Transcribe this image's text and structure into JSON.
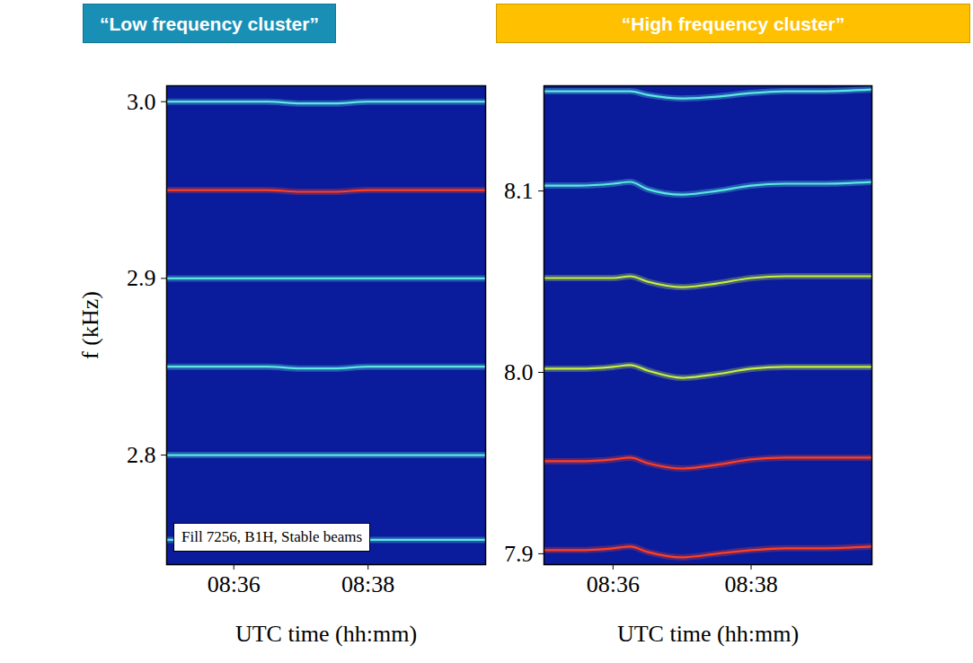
{
  "chart_data": [
    {
      "type": "line",
      "title": "“Low frequency cluster”",
      "xlabel": "UTC time (hh:mm)",
      "ylabel": "f (kHz)",
      "annotation": "Fill 7256, B1H, Stable beams",
      "x": [
        "08:35:00",
        "08:35:30",
        "08:36:00",
        "08:36:30",
        "08:37:00",
        "08:37:30",
        "08:38:00",
        "08:38:30",
        "08:39:00",
        "08:39:45"
      ],
      "series": [
        {
          "color": "#5ce8e0",
          "values": [
            3.0,
            3.0,
            3.0,
            3.0,
            2.999,
            2.999,
            3.0,
            3.0,
            3.0,
            3.0
          ]
        },
        {
          "color": "#ff4020",
          "values": [
            2.95,
            2.95,
            2.95,
            2.95,
            2.949,
            2.949,
            2.95,
            2.95,
            2.95,
            2.95
          ]
        },
        {
          "color": "#5ce8e0",
          "values": [
            2.9,
            2.9,
            2.9,
            2.9,
            2.9,
            2.9,
            2.9,
            2.9,
            2.9,
            2.9
          ]
        },
        {
          "color": "#5ce8e0",
          "values": [
            2.85,
            2.85,
            2.85,
            2.85,
            2.849,
            2.849,
            2.85,
            2.85,
            2.85,
            2.85
          ]
        },
        {
          "color": "#5ce8e0",
          "values": [
            2.8,
            2.8,
            2.8,
            2.8,
            2.8,
            2.8,
            2.8,
            2.8,
            2.8,
            2.8
          ]
        },
        {
          "color": "#5ce8e0",
          "values": [
            2.752,
            2.752,
            2.752,
            2.752,
            2.752,
            2.752,
            2.752,
            2.752,
            2.752,
            2.752
          ]
        }
      ],
      "xlim": [
        "08:35:00",
        "08:39:45"
      ],
      "xticks": [
        "08:36",
        "08:38"
      ],
      "ylim": [
        2.738,
        3.009
      ],
      "yticks": [
        2.8,
        2.9,
        {
          "value": 3,
          "label": "3.0"
        }
      ],
      "color": "#1a8fb5"
    },
    {
      "type": "line",
      "title": "“High frequency cluster”",
      "xlabel": "UTC time (hh:mm)",
      "x": [
        "08:35:00",
        "08:35:30",
        "08:36:00",
        "08:36:15",
        "08:36:30",
        "08:37:00",
        "08:37:30",
        "08:38:00",
        "08:38:30",
        "08:39:00",
        "08:39:45"
      ],
      "series": [
        {
          "color": "#5ce8e0",
          "values": [
            8.155,
            8.155,
            8.155,
            8.155,
            8.153,
            8.151,
            8.152,
            8.154,
            8.155,
            8.155,
            8.156
          ]
        },
        {
          "color": "#5ce8e0",
          "values": [
            8.103,
            8.103,
            8.104,
            8.105,
            8.101,
            8.098,
            8.1,
            8.103,
            8.104,
            8.104,
            8.105
          ]
        },
        {
          "color": "#c8f040",
          "values": [
            8.052,
            8.052,
            8.052,
            8.053,
            8.05,
            8.047,
            8.049,
            8.052,
            8.053,
            8.053,
            8.053
          ]
        },
        {
          "color": "#c8f040",
          "values": [
            8.002,
            8.002,
            8.003,
            8.004,
            8.001,
            7.997,
            7.999,
            8.002,
            8.003,
            8.003,
            8.003
          ]
        },
        {
          "color": "#ff4020",
          "values": [
            7.951,
            7.951,
            7.952,
            7.953,
            7.95,
            7.947,
            7.949,
            7.952,
            7.953,
            7.953,
            7.953
          ]
        },
        {
          "color": "#ff4020",
          "values": [
            7.902,
            7.902,
            7.903,
            7.904,
            7.901,
            7.898,
            7.9,
            7.902,
            7.903,
            7.903,
            7.904
          ]
        }
      ],
      "xlim": [
        "08:35:00",
        "08:39:45"
      ],
      "xticks": [
        "08:36",
        "08:38"
      ],
      "ylim": [
        7.894,
        8.158
      ],
      "yticks": [
        7.9,
        {
          "value": 8,
          "label": "8.0"
        },
        8.1
      ],
      "color": "#ffc000"
    }
  ]
}
